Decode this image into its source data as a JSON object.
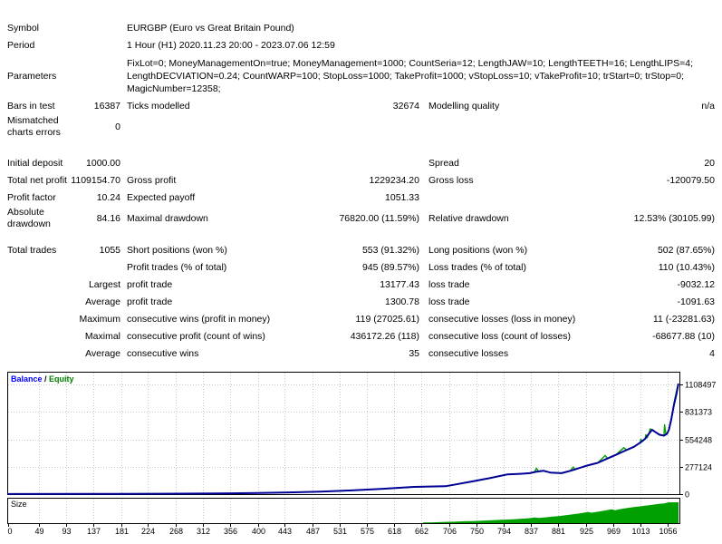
{
  "report": {
    "rows": [
      {
        "cells": [
          "Symbol",
          "",
          "EURGBP (Euro vs Great Britain Pound)",
          "",
          "",
          ""
        ]
      },
      {
        "cells": [
          "Period",
          "",
          "1 Hour (H1) 2020.11.23 20:00 - 2023.07.06 12:59",
          "",
          "",
          ""
        ]
      },
      {
        "type": "params",
        "label": "Parameters",
        "lines": [
          "FixLot=0; MoneyManagementOn=true; MoneyManagement=1000; CountSeria=12; LengthJAW=10; LengthTEETH=16; LengthLIPS=4;",
          "LengthDECVIATION=0.24; CountWARP=100; StopLoss=1000; TakeProfit=1000; vStopLoss=10; vTakeProfit=10; trStart=0; trStop=0;",
          "MagicNumber=12358;"
        ]
      },
      {
        "cells": [
          "Bars in test",
          "16387",
          "Ticks modelled",
          "32674",
          "Modelling quality",
          "n/a"
        ]
      },
      {
        "cells": [
          "Mismatched charts errors",
          "0",
          "",
          "",
          "",
          ""
        ]
      },
      {
        "type": "spacer",
        "h": 18
      },
      {
        "cells": [
          "Initial deposit",
          "1000.00",
          "",
          "",
          "Spread",
          "20"
        ]
      },
      {
        "cells": [
          "Total net profit",
          "1109154.70",
          "Gross profit",
          "1229234.20",
          "Gross loss",
          "-120079.50"
        ]
      },
      {
        "cells": [
          "Profit factor",
          "10.24",
          "Expected payoff",
          "1051.33",
          "",
          ""
        ]
      },
      {
        "cells": [
          "Absolute drawdown",
          "84.16",
          "Maximal drawdown",
          "76820.00 (11.59%)",
          "Relative drawdown",
          "12.53% (30105.99)"
        ]
      },
      {
        "type": "spacer",
        "h": 13
      },
      {
        "cells": [
          "Total trades",
          "1055",
          "Short positions (won %)",
          "553 (91.32%)",
          "Long positions (won %)",
          "502 (87.65%)"
        ]
      },
      {
        "cells": [
          "",
          "",
          "Profit trades (% of total)",
          "945 (89.57%)",
          "Loss trades (% of total)",
          "110 (10.43%)"
        ]
      },
      {
        "cells": [
          "",
          "Largest",
          "profit trade",
          "13177.43",
          "loss trade",
          "-9032.12"
        ]
      },
      {
        "cells": [
          "",
          "Average",
          "profit trade",
          "1300.78",
          "loss trade",
          "-1091.63"
        ]
      },
      {
        "cells": [
          "",
          "Maximum",
          "consecutive wins (profit in money)",
          "119 (27025.61)",
          "consecutive losses (loss in money)",
          "11 (-23281.63)"
        ]
      },
      {
        "cells": [
          "",
          "Maximal",
          "consecutive profit (count of wins)",
          "436172.26 (118)",
          "consecutive loss (count of losses)",
          "-68677.88 (10)"
        ]
      },
      {
        "cells": [
          "",
          "Average",
          "consecutive wins",
          "35",
          "consecutive losses",
          "4"
        ]
      }
    ]
  },
  "chart_data": {
    "type": "line",
    "title": "Balance / Equity",
    "legend": [
      {
        "label": "Balance",
        "color": "#0000FF"
      },
      {
        "label": "Equity",
        "color": "#008000"
      }
    ],
    "legend_separator": " / ",
    "grid": true,
    "legend_position": "top-left",
    "x_ticks": [
      0,
      49,
      93,
      137,
      181,
      224,
      268,
      312,
      356,
      400,
      443,
      487,
      531,
      575,
      618,
      662,
      706,
      750,
      794,
      837,
      881,
      925,
      969,
      1013,
      1056
    ],
    "y_ticks": [
      0,
      277124,
      554248,
      831373,
      1108497
    ],
    "xlim": [
      0,
      1073
    ],
    "ylim": [
      0,
      1108497
    ],
    "series": [
      {
        "name": "Equity",
        "color": "#00A000",
        "width": 1.4,
        "points": [
          [
            0,
            1000
          ],
          [
            120,
            2000
          ],
          [
            240,
            3500
          ],
          [
            330,
            6000
          ],
          [
            400,
            11000
          ],
          [
            450,
            17000
          ],
          [
            500,
            26000
          ],
          [
            550,
            38000
          ],
          [
            600,
            54000
          ],
          [
            650,
            73000
          ],
          [
            700,
            80000
          ],
          [
            740,
            125000
          ],
          [
            770,
            160000
          ],
          [
            799,
            199000
          ],
          [
            820,
            205000
          ],
          [
            835,
            212000
          ],
          [
            843,
            225000
          ],
          [
            846,
            262000
          ],
          [
            849,
            232000
          ],
          [
            857,
            236000
          ],
          [
            868,
            218000
          ],
          [
            886,
            212000
          ],
          [
            900,
            235000
          ],
          [
            905,
            275000
          ],
          [
            908,
            248000
          ],
          [
            925,
            285000
          ],
          [
            944,
            316000
          ],
          [
            956,
            390000
          ],
          [
            960,
            358000
          ],
          [
            973,
            397000
          ],
          [
            986,
            470000
          ],
          [
            990,
            445000
          ],
          [
            1002,
            478000
          ],
          [
            1012,
            520000
          ],
          [
            1013,
            555000
          ],
          [
            1015,
            530000
          ],
          [
            1020,
            560000
          ],
          [
            1021,
            600000
          ],
          [
            1023,
            570000
          ],
          [
            1026,
            610000
          ],
          [
            1028,
            660000
          ],
          [
            1031,
            650000
          ],
          [
            1037,
            625000
          ],
          [
            1043,
            600000
          ],
          [
            1050,
            591000
          ],
          [
            1051,
            700000
          ],
          [
            1053,
            615000
          ],
          [
            1055,
            610000
          ],
          [
            1058,
            650000
          ],
          [
            1062,
            760000
          ],
          [
            1064,
            830000
          ],
          [
            1067,
            950000
          ],
          [
            1071,
            1060000
          ],
          [
            1073,
            1108497
          ]
        ]
      },
      {
        "name": "Balance",
        "color": "#000096",
        "width": 2,
        "points": [
          [
            0,
            1000
          ],
          [
            120,
            2000
          ],
          [
            240,
            3500
          ],
          [
            330,
            6000
          ],
          [
            400,
            11000
          ],
          [
            450,
            17000
          ],
          [
            500,
            26000
          ],
          [
            550,
            38000
          ],
          [
            600,
            54000
          ],
          [
            650,
            73000
          ],
          [
            700,
            80000
          ],
          [
            740,
            125000
          ],
          [
            770,
            160000
          ],
          [
            799,
            199000
          ],
          [
            820,
            205000
          ],
          [
            835,
            212000
          ],
          [
            845,
            225000
          ],
          [
            857,
            236000
          ],
          [
            868,
            218000
          ],
          [
            886,
            212000
          ],
          [
            900,
            235000
          ],
          [
            910,
            255000
          ],
          [
            925,
            285000
          ],
          [
            944,
            316000
          ],
          [
            958,
            355000
          ],
          [
            973,
            397000
          ],
          [
            988,
            440000
          ],
          [
            1002,
            478000
          ],
          [
            1012,
            520000
          ],
          [
            1020,
            560000
          ],
          [
            1026,
            610000
          ],
          [
            1031,
            650000
          ],
          [
            1037,
            625000
          ],
          [
            1043,
            600000
          ],
          [
            1050,
            591000
          ],
          [
            1055,
            610000
          ],
          [
            1058,
            650000
          ],
          [
            1062,
            760000
          ],
          [
            1066,
            900000
          ],
          [
            1070,
            1010000
          ],
          [
            1073,
            1108497
          ]
        ]
      }
    ],
    "size_panel": {
      "label": "Size",
      "color": "#00A000",
      "bars": [
        [
          664,
          0.03
        ],
        [
          680,
          0.04
        ],
        [
          700,
          0.06
        ],
        [
          715,
          0.07
        ],
        [
          730,
          0.09
        ],
        [
          745,
          0.1
        ],
        [
          760,
          0.12
        ],
        [
          775,
          0.14
        ],
        [
          790,
          0.16
        ],
        [
          805,
          0.18
        ],
        [
          820,
          0.21
        ],
        [
          835,
          0.24
        ],
        [
          843,
          0.27
        ],
        [
          850,
          0.25
        ],
        [
          860,
          0.28
        ],
        [
          870,
          0.31
        ],
        [
          881,
          0.34
        ],
        [
          890,
          0.37
        ],
        [
          900,
          0.41
        ],
        [
          910,
          0.45
        ],
        [
          920,
          0.49
        ],
        [
          928,
          0.54
        ],
        [
          934,
          0.5
        ],
        [
          942,
          0.54
        ],
        [
          950,
          0.58
        ],
        [
          958,
          0.62
        ],
        [
          966,
          0.66
        ],
        [
          972,
          0.62
        ],
        [
          978,
          0.66
        ],
        [
          986,
          0.7
        ],
        [
          994,
          0.74
        ],
        [
          1002,
          0.77
        ],
        [
          1010,
          0.8
        ],
        [
          1018,
          0.83
        ],
        [
          1026,
          0.86
        ],
        [
          1034,
          0.89
        ],
        [
          1042,
          0.92
        ],
        [
          1050,
          0.95
        ],
        [
          1058,
          1.0
        ],
        [
          1067,
          1.0
        ]
      ]
    }
  }
}
